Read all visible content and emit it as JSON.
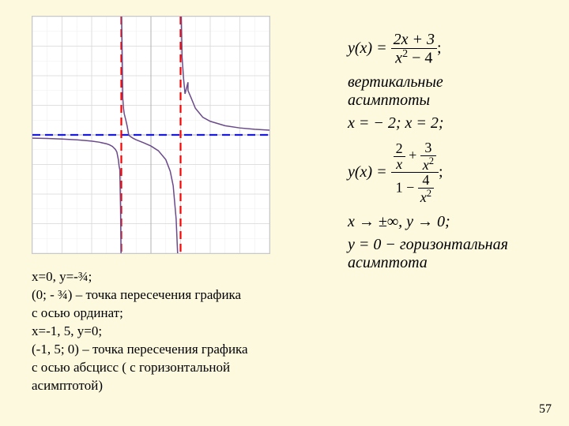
{
  "page_number": "57",
  "notes": {
    "l1": "x=0, y=-¾;",
    "l2": "(0; - ¾) – точка пересечения графика",
    "l3": "с осью ординат;",
    "l4": "x=-1, 5, y=0;",
    "l5": "(-1, 5; 0) – точка пересечения графика",
    "l6": "с осью абсцисс ( с горизонтальной",
    "l7": "асимптотой)"
  },
  "math": {
    "eq1_left": "y(x) =",
    "eq1_num": "2x + 3",
    "eq1_den": "x",
    "eq1_den_sup": "2",
    "eq1_den_tail": " − 4",
    "eq1_end": ";",
    "label1_l1": "вертикальные",
    "label1_l2": "асимптоты",
    "eq2": "x = − 2; x = 2;",
    "eq3_left": "y(x) =",
    "eq3_a_num_left": "2",
    "eq3_a_num_center": " + ",
    "eq3_a_num_right": "3",
    "eq3_a_den_left": "x",
    "eq3_a_den_right": "x",
    "eq3_b_den_left": "1 − ",
    "eq3_b_den_right": "4",
    "eq3_b_den_den": "x",
    "eq3_end": ";",
    "eq4": "x → ±∞, y → 0;",
    "eq5_l1": "y = 0 − горизонтальная",
    "eq5_l2": "асимптота"
  },
  "graph": {
    "background": "#ffffff",
    "grid_major": "#d8d8d8",
    "grid_minor": "#efefef",
    "axis_color": "#b0b0b0",
    "curve_color": "#6a4a8a",
    "curve_width": 1.5,
    "vasym_color": "#ff0000",
    "vasym_width": 2.2,
    "vasym_dash": "10,6",
    "hasym_color": "#1a1ae6",
    "hasym_width": 2.2,
    "hasym_dash": "10,6",
    "xlim": [
      -8,
      8
    ],
    "ylim": [
      -8,
      8
    ],
    "v_asymptotes": [
      -2,
      2
    ],
    "h_asymptote": 0,
    "curve_left": [
      [
        -8,
        -0.22
      ],
      [
        -7,
        -0.24
      ],
      [
        -6,
        -0.28
      ],
      [
        -5,
        -0.33
      ],
      [
        -4.5,
        -0.37
      ],
      [
        -4,
        -0.42
      ],
      [
        -3.5,
        -0.49
      ],
      [
        -3,
        -0.6
      ],
      [
        -2.8,
        -0.67
      ],
      [
        -2.6,
        -0.78
      ],
      [
        -2.4,
        -0.98
      ],
      [
        -2.3,
        -1.16
      ],
      [
        -2.2,
        -1.67
      ],
      [
        -2.15,
        -2.1
      ],
      [
        -2.1,
        -2.36
      ],
      [
        -2.05,
        -5.02
      ],
      [
        -2.02,
        -8
      ]
    ],
    "curve_mid_a": [
      [
        -1.98,
        8
      ],
      [
        -1.95,
        6.1
      ],
      [
        -1.9,
        2.46
      ],
      [
        -1.85,
        1.78
      ],
      [
        -1.8,
        1.42
      ],
      [
        -1.7,
        1.02
      ],
      [
        -1.6,
        0.57
      ],
      [
        -1.5,
        0.0
      ]
    ],
    "curve_mid_b": [
      [
        -1.5,
        0.0
      ],
      [
        -1.4,
        -0.1
      ],
      [
        -1.2,
        -0.23
      ],
      [
        -1.0,
        -0.33
      ],
      [
        -0.5,
        -0.53
      ],
      [
        0,
        -0.75
      ],
      [
        0.5,
        -1.07
      ],
      [
        1.0,
        -1.67
      ],
      [
        1.3,
        -2.45
      ],
      [
        1.5,
        -3.43
      ],
      [
        1.7,
        -5.68
      ],
      [
        1.8,
        -8
      ]
    ],
    "curve_right": [
      [
        2.02,
        8
      ],
      [
        2.05,
        8
      ],
      [
        2.1,
        5.27
      ],
      [
        2.2,
        3.83
      ],
      [
        2.3,
        2.78
      ],
      [
        2.5,
        3.56
      ],
      [
        2.5,
        3.0
      ],
      [
        2.7,
        2.53
      ],
      [
        3.0,
        1.8
      ],
      [
        3.5,
        1.19
      ],
      [
        4.0,
        0.92
      ],
      [
        5.0,
        0.62
      ],
      [
        6.0,
        0.47
      ],
      [
        7.0,
        0.38
      ],
      [
        8.0,
        0.32
      ]
    ]
  }
}
